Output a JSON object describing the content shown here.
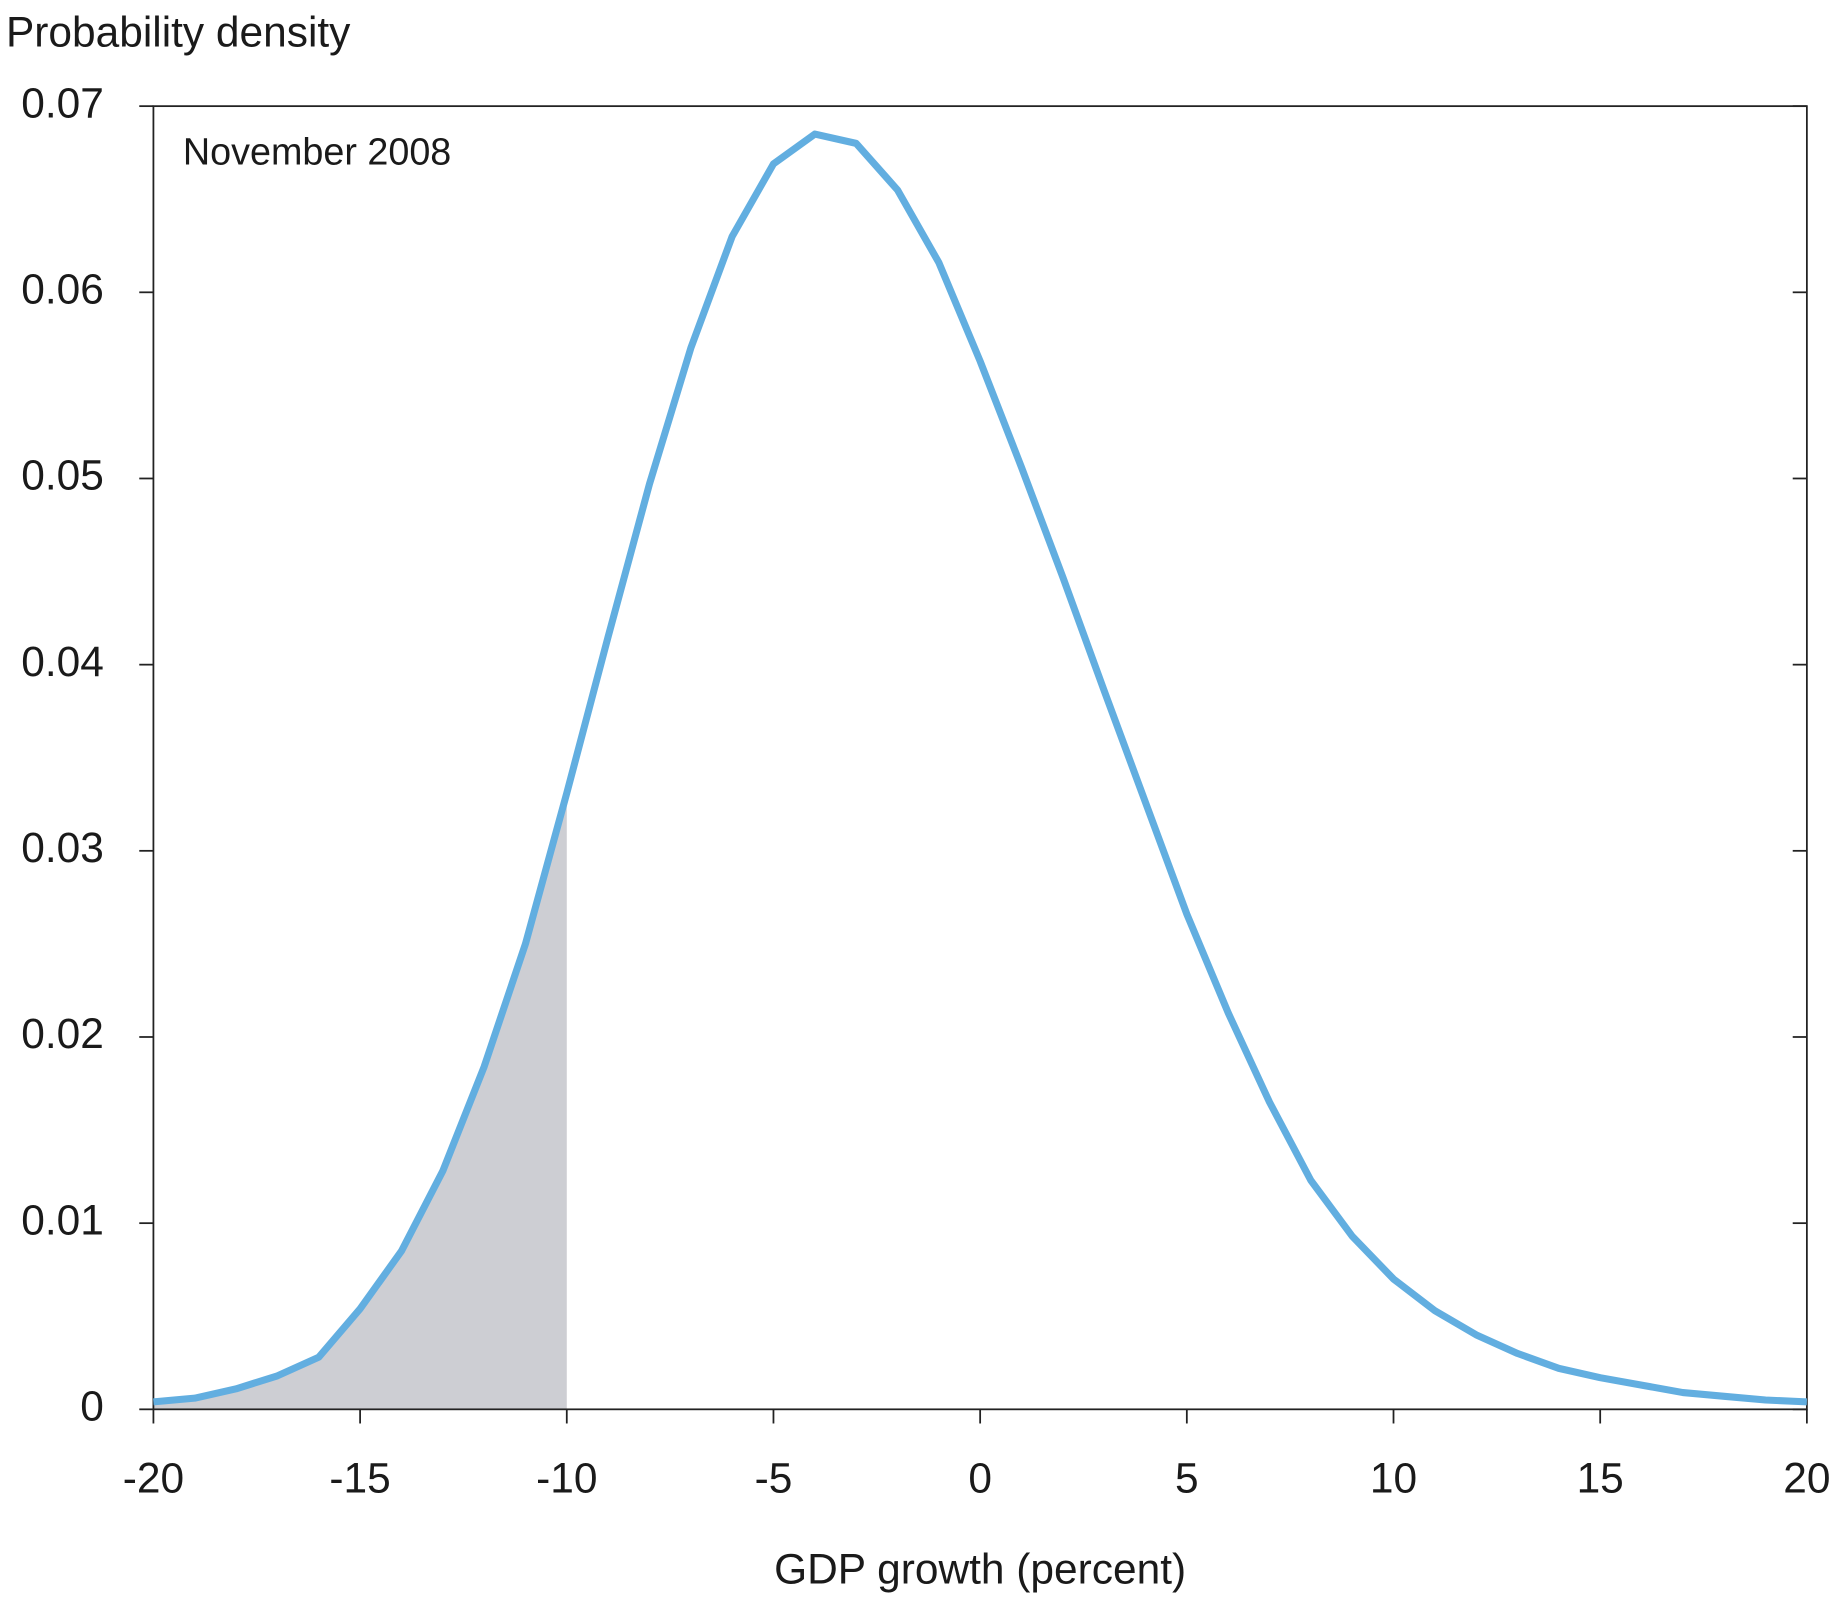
{
  "chart_data": {
    "type": "line",
    "y_axis_label": "Probability density",
    "x_axis_label": "GDP growth (percent)",
    "annotation": "November 2008",
    "x": [
      -20,
      -19,
      -18,
      -17,
      -16,
      -15,
      -14,
      -13,
      -12,
      -11,
      -10,
      -9,
      -8,
      -7,
      -6,
      -5,
      -4,
      -3,
      -2,
      -1,
      0,
      1,
      2,
      3,
      4,
      5,
      6,
      7,
      8,
      9,
      10,
      11,
      12,
      13,
      14,
      15,
      16,
      17,
      18,
      19,
      20
    ],
    "series": [
      {
        "color": "#62aee0",
        "values": [
          0.0004,
          0.0006,
          0.0011,
          0.0018,
          0.0028,
          0.0054,
          0.0085,
          0.0128,
          0.0184,
          0.025,
          0.0331,
          0.0415,
          0.0497,
          0.057,
          0.063,
          0.0669,
          0.0685,
          0.068,
          0.0655,
          0.0616,
          0.0563,
          0.0506,
          0.0447,
          0.0386,
          0.0326,
          0.0266,
          0.0213,
          0.0165,
          0.0123,
          0.0093,
          0.007,
          0.0053,
          0.004,
          0.003,
          0.0022,
          0.0017,
          0.0013,
          0.0009,
          0.0007,
          0.0005,
          0.0004
        ]
      }
    ],
    "shade_xlim": [
      -20,
      -10
    ],
    "shade_color": "#cdced3",
    "xlim": [
      -20,
      20
    ],
    "xticks": [
      -20,
      -15,
      -10,
      -5,
      0,
      5,
      10,
      15,
      20
    ],
    "ylim": [
      0,
      0.07
    ],
    "yticks": [
      0,
      0.01,
      0.02,
      0.03,
      0.04,
      0.05,
      0.06,
      0.07
    ]
  }
}
